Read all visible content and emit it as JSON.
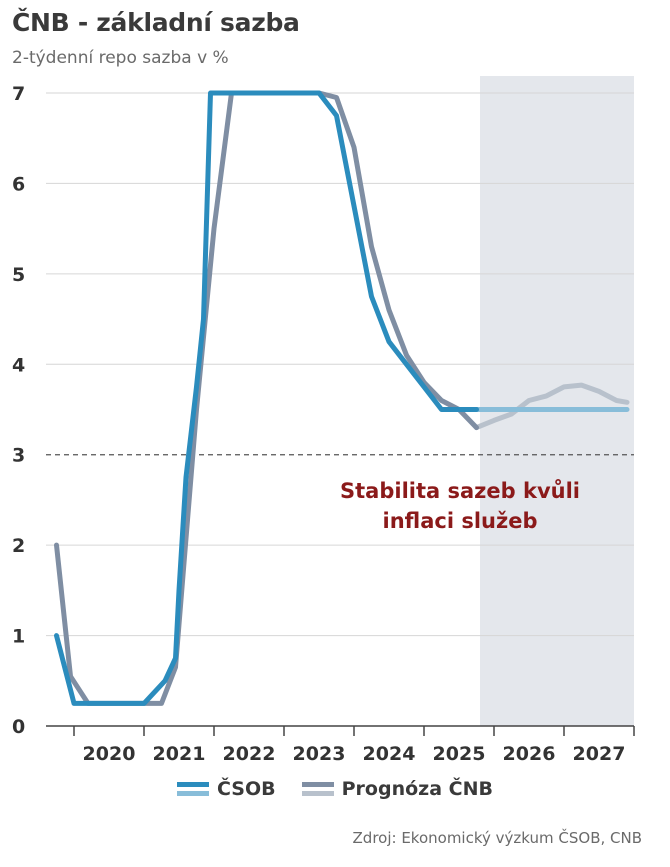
{
  "header": {
    "title": "ČNB - základní sazba",
    "subtitle": "2-týdenní repo sazba v %"
  },
  "legend": {
    "csob": "ČSOB",
    "cnb": "Prognóza ČNB"
  },
  "source": "Zdroj: Ekonomický výzkum ČSOB, CNB",
  "chart_data": {
    "type": "line",
    "title": "ČNB - základní sazba",
    "ylabel": "2-týdenní repo sazba v %",
    "xlabel": "",
    "ylim": [
      0,
      7
    ],
    "xlim": [
      2019.6,
      2028.0
    ],
    "yticks": [
      0,
      1,
      2,
      3,
      4,
      5,
      6,
      7
    ],
    "xticks": [
      "2020",
      "2021",
      "2022",
      "2023",
      "2024",
      "2025",
      "2026",
      "2027"
    ],
    "reference_line": 3,
    "forecast_shade_start": 2025.8,
    "annotation": [
      "Stabilita sazeb kvůli",
      "inflaci služeb"
    ],
    "colors": {
      "csob_actual": "#2b8cbd",
      "csob_forecast": "#88bdd9",
      "cnb_actual": "#7f8ea3",
      "cnb_forecast": "#b8c1cc",
      "shade": "#e4e7ec",
      "annotation": "#8b1a1a"
    },
    "series": [
      {
        "name": "ČSOB",
        "x": [
          2019.75,
          2020.0,
          2020.25,
          2020.5,
          2020.75,
          2021.0,
          2021.3,
          2021.45,
          2021.5,
          2021.6,
          2021.75,
          2021.85,
          2021.95,
          2022.25,
          2022.5,
          2022.75,
          2023.0,
          2023.25,
          2023.5,
          2023.75,
          2024.0,
          2024.25,
          2024.5,
          2024.75,
          2025.0,
          2025.25,
          2025.5,
          2025.75,
          2026.0,
          2026.25,
          2026.5,
          2026.75,
          2027.0,
          2027.25,
          2027.5,
          2027.75,
          2027.9
        ],
        "values": [
          1.0,
          0.25,
          0.25,
          0.25,
          0.25,
          0.25,
          0.5,
          0.75,
          1.5,
          2.75,
          3.75,
          4.5,
          7.0,
          7.0,
          7.0,
          7.0,
          7.0,
          7.0,
          7.0,
          6.75,
          5.75,
          4.75,
          4.25,
          4.0,
          3.75,
          3.5,
          3.5,
          3.5,
          3.5,
          3.5,
          3.5,
          3.5,
          3.5,
          3.5,
          3.5,
          3.5,
          3.5
        ]
      },
      {
        "name": "Prognóza ČNB",
        "x": [
          2019.75,
          2019.95,
          2020.2,
          2020.5,
          2020.75,
          2021.0,
          2021.25,
          2021.45,
          2021.75,
          2022.0,
          2022.25,
          2022.5,
          2022.75,
          2023.0,
          2023.25,
          2023.5,
          2023.75,
          2024.0,
          2024.25,
          2024.5,
          2024.75,
          2025.0,
          2025.25,
          2025.5,
          2025.75,
          2026.0,
          2026.25,
          2026.5,
          2026.75,
          2027.0,
          2027.25,
          2027.5,
          2027.75,
          2027.9
        ],
        "values": [
          2.0,
          0.55,
          0.25,
          0.25,
          0.25,
          0.25,
          0.25,
          0.65,
          3.5,
          5.5,
          7.0,
          7.0,
          7.0,
          7.0,
          7.0,
          7.0,
          6.95,
          6.4,
          5.3,
          4.6,
          4.1,
          3.8,
          3.6,
          3.5,
          3.3,
          3.38,
          3.45,
          3.6,
          3.65,
          3.75,
          3.77,
          3.7,
          3.6,
          3.58
        ]
      }
    ]
  }
}
